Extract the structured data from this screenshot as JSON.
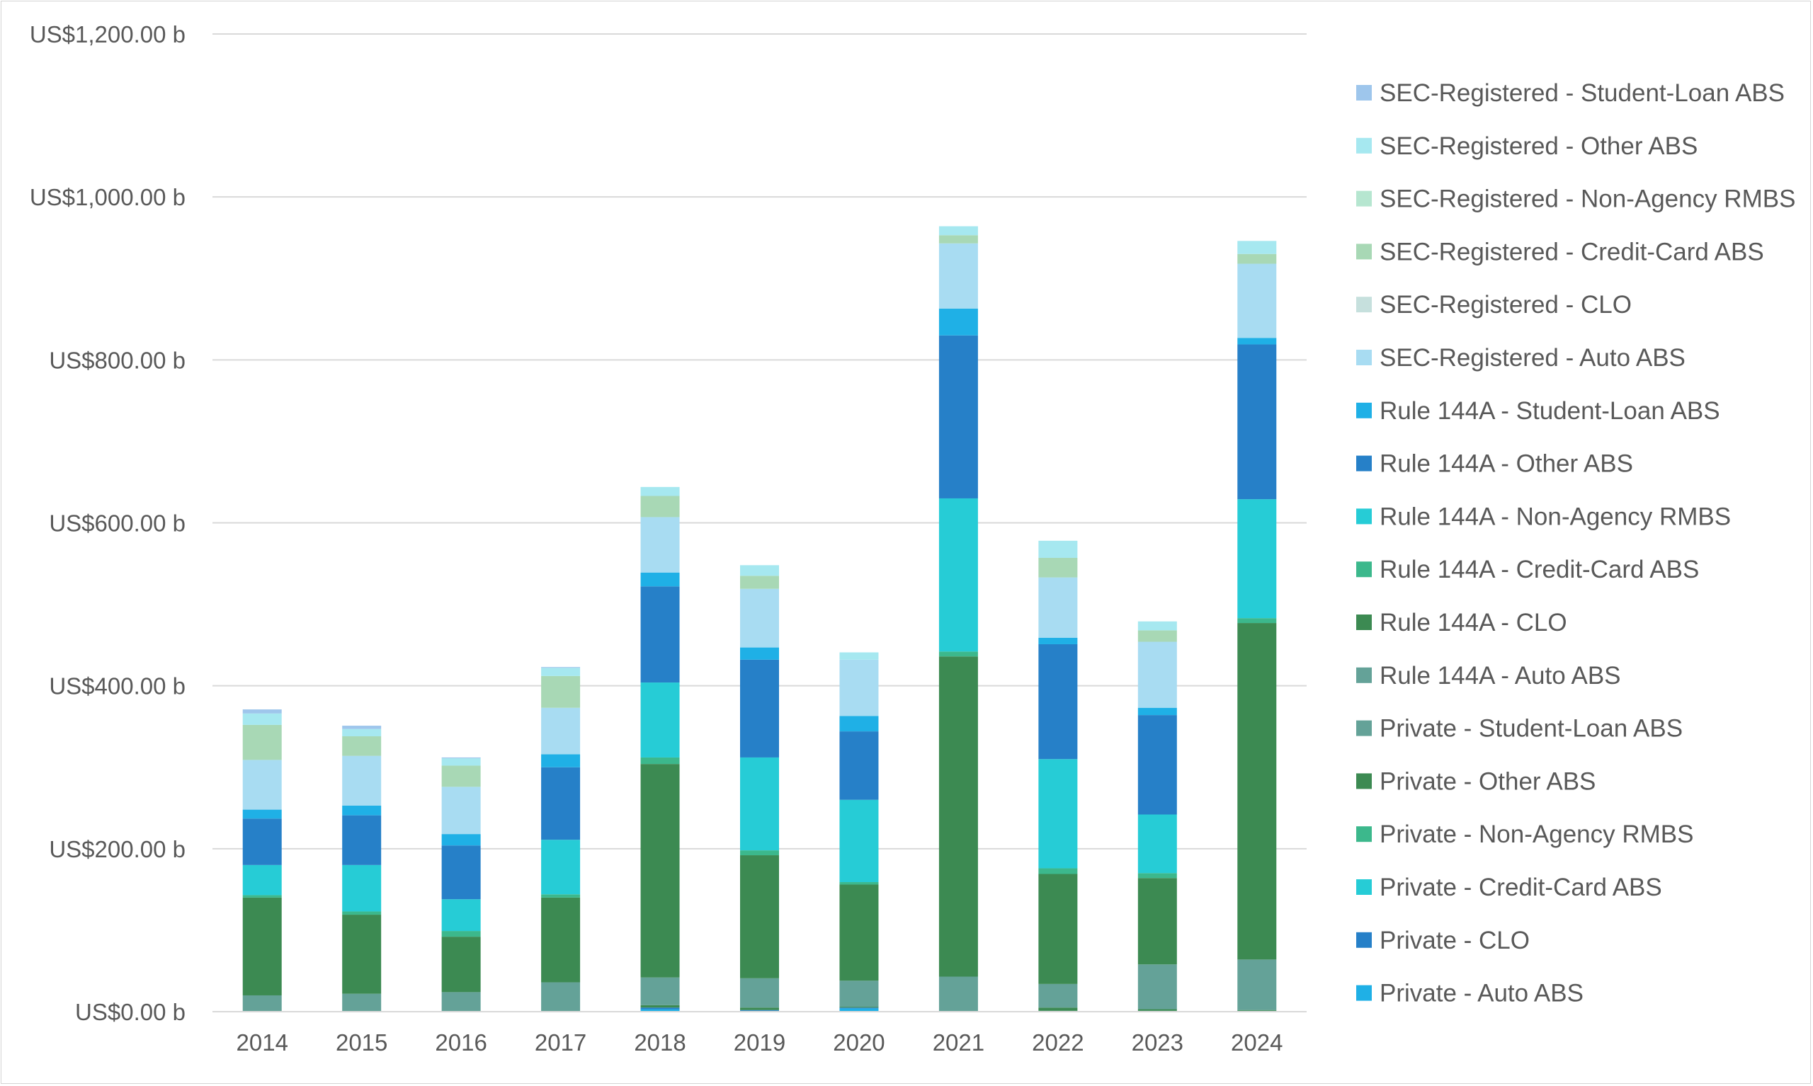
{
  "chart_data": {
    "type": "bar",
    "stacked": true,
    "title": "",
    "xlabel": "",
    "ylabel": "",
    "ylim": [
      0,
      1200
    ],
    "yticks": [
      0,
      200,
      400,
      600,
      800,
      1000,
      1200
    ],
    "ytick_labels": [
      "US$0.00 b",
      "US$200.00 b",
      "US$400.00 b",
      "US$600.00 b",
      "US$800.00 b",
      "US$1,000.00 b",
      "US$1,200.00 b"
    ],
    "grid": true,
    "legend_position": "right",
    "categories": [
      "2014",
      "2015",
      "2016",
      "2017",
      "2018",
      "2019",
      "2020",
      "2021",
      "2022",
      "2023",
      "2024"
    ],
    "series": [
      {
        "name": "Private - Auto ABS",
        "color": "#1fb0e6",
        "values": [
          0,
          0,
          0,
          0,
          3,
          1,
          4,
          0,
          1,
          1,
          1
        ]
      },
      {
        "name": "Private - CLO",
        "color": "#2680c8",
        "values": [
          0,
          0,
          0,
          0,
          2,
          1,
          1,
          0,
          0,
          0,
          0
        ]
      },
      {
        "name": "Private - Credit-Card ABS",
        "color": "#26ccd6",
        "values": [
          0,
          0,
          0,
          0,
          0,
          0,
          0,
          0,
          0,
          0,
          0
        ]
      },
      {
        "name": "Private - Non-Agency RMBS",
        "color": "#3cb88c",
        "values": [
          0,
          0,
          0,
          0,
          0,
          0,
          0,
          0,
          0,
          0,
          0
        ]
      },
      {
        "name": "Private - Other ABS",
        "color": "#3c8a52",
        "values": [
          0,
          0,
          0,
          0,
          3,
          3,
          1,
          0,
          4,
          2,
          1
        ]
      },
      {
        "name": "Private - Student-Loan ABS",
        "color": "#64a298",
        "values": [
          0,
          0,
          0,
          0,
          0,
          0,
          0,
          0,
          0,
          0,
          0
        ]
      },
      {
        "name": "Rule 144A - Auto ABS",
        "color": "#64a298",
        "values": [
          20,
          22,
          24,
          36,
          34,
          36,
          32,
          43,
          29,
          55,
          62
        ]
      },
      {
        "name": "Rule 144A - CLO",
        "color": "#3c8a52",
        "values": [
          120,
          97,
          68,
          104,
          262,
          151,
          118,
          393,
          135,
          106,
          413
        ]
      },
      {
        "name": "Rule 144A - Credit-Card ABS",
        "color": "#3cb88c",
        "values": [
          3,
          4,
          7,
          4,
          8,
          6,
          3,
          6,
          7,
          6,
          6
        ]
      },
      {
        "name": "Rule 144A - Non-Agency RMBS",
        "color": "#26ccd6",
        "values": [
          37,
          57,
          39,
          67,
          92,
          114,
          101,
          188,
          134,
          72,
          146
        ]
      },
      {
        "name": "Rule 144A - Other ABS",
        "color": "#2680c8",
        "values": [
          57,
          61,
          66,
          89,
          118,
          120,
          84,
          200,
          141,
          122,
          190
        ]
      },
      {
        "name": "Rule 144A - Student-Loan ABS",
        "color": "#1fb0e6",
        "values": [
          11,
          12,
          14,
          16,
          17,
          15,
          19,
          33,
          8,
          9,
          8
        ]
      },
      {
        "name": "SEC-Registered - Auto ABS",
        "color": "#a8dcf2",
        "values": [
          61,
          61,
          58,
          57,
          68,
          72,
          69,
          80,
          74,
          81,
          91
        ]
      },
      {
        "name": "SEC-Registered - CLO",
        "color": "#c6e0dd",
        "values": [
          0,
          0,
          0,
          0,
          0,
          0,
          0,
          0,
          0,
          0,
          0
        ]
      },
      {
        "name": "SEC-Registered - Credit-Card ABS",
        "color": "#a8d8b5",
        "values": [
          43,
          24,
          26,
          39,
          26,
          16,
          0,
          10,
          24,
          14,
          12
        ]
      },
      {
        "name": "SEC-Registered - Non-Agency RMBS",
        "color": "#b6e6d0",
        "values": [
          0,
          0,
          0,
          0,
          0,
          0,
          0,
          0,
          0,
          0,
          0
        ]
      },
      {
        "name": "SEC-Registered - Other ABS",
        "color": "#a6e8f0",
        "values": [
          14,
          9,
          9,
          10,
          11,
          13,
          9,
          11,
          21,
          11,
          16
        ]
      },
      {
        "name": "SEC-Registered - Student-Loan ABS",
        "color": "#9ec6ec",
        "values": [
          5,
          4,
          1,
          1,
          0,
          0,
          0,
          0,
          0,
          0,
          0
        ]
      }
    ]
  }
}
